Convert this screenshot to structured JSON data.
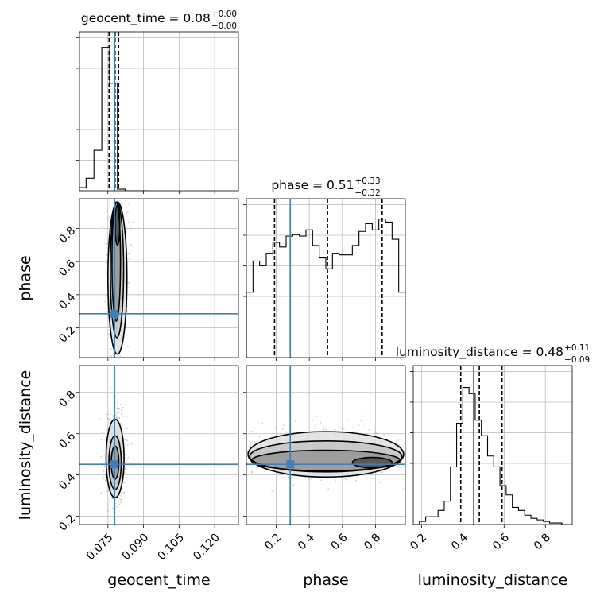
{
  "chart_data": {
    "type": "corner",
    "parameters": [
      "geocent_time",
      "phase",
      "luminosity_distance"
    ],
    "truth_color": "#3f7fb5",
    "truths": {
      "geocent_time": 0.0778,
      "phase": 0.285,
      "luminosity_distance": 0.452
    },
    "titles": {
      "geocent_time": {
        "text": "geocent_time = 0.08",
        "sup": "+0.00",
        "sub": "−0.00"
      },
      "phase": {
        "text": "phase = 0.51",
        "sup": "+0.33",
        "sub": "−0.32"
      },
      "luminosity_distance": {
        "text": "luminosity_distance = 0.48",
        "sup": "+0.11",
        "sub": "−0.09"
      }
    },
    "axis_labels": {
      "x": [
        "geocent_time",
        "phase",
        "luminosity_distance"
      ],
      "y": [
        "phase",
        "luminosity_distance"
      ]
    },
    "ranges": {
      "geocent_time": [
        0.063,
        0.13
      ],
      "phase": [
        0.02,
        0.98
      ],
      "luminosity_distance": [
        0.16,
        0.93
      ]
    },
    "ticks": {
      "geocent_time": {
        "values": [
          0.075,
          0.09,
          0.105,
          0.12
        ],
        "labels": [
          "0.075",
          "0.090",
          "0.105",
          "0.120"
        ]
      },
      "phase": {
        "values": [
          0.2,
          0.4,
          0.6,
          0.8
        ],
        "labels": [
          "0.2",
          "0.4",
          "0.6",
          "0.8"
        ]
      },
      "luminosity_distance": {
        "values": [
          0.2,
          0.4,
          0.6,
          0.8
        ],
        "labels": [
          "0.2",
          "0.4",
          "0.6",
          "0.8"
        ]
      }
    },
    "quantiles": {
      "geocent_time": [
        0.0755,
        0.078,
        0.0795
      ],
      "phase": [
        0.19,
        0.51,
        0.84
      ],
      "luminosity_distance": [
        0.39,
        0.48,
        0.59
      ]
    },
    "histograms": {
      "geocent_time": {
        "edges": [
          0.0625,
          0.0658,
          0.0691,
          0.0724,
          0.0757,
          0.079,
          0.0823,
          0.0856,
          0.0889,
          0.0922
        ],
        "counts": [
          0.02,
          0.08,
          0.26,
          0.92,
          0.69,
          0.01,
          0,
          0,
          0
        ]
      },
      "phase": {
        "edges": [
          0.02,
          0.06,
          0.1,
          0.14,
          0.18,
          0.22,
          0.26,
          0.3,
          0.34,
          0.38,
          0.42,
          0.46,
          0.5,
          0.54,
          0.58,
          0.62,
          0.66,
          0.7,
          0.74,
          0.78,
          0.82,
          0.86,
          0.9,
          0.94,
          0.98
        ],
        "counts": [
          0.42,
          0.62,
          0.59,
          0.67,
          0.74,
          0.71,
          0.78,
          0.79,
          0.78,
          0.82,
          0.72,
          0.64,
          0.57,
          0.67,
          0.66,
          0.66,
          0.72,
          0.81,
          0.86,
          0.82,
          0.89,
          0.87,
          0.76,
          0.42
        ]
      },
      "luminosity_distance": {
        "edges": [
          0.16,
          0.19,
          0.22,
          0.25,
          0.28,
          0.31,
          0.34,
          0.37,
          0.4,
          0.43,
          0.46,
          0.49,
          0.52,
          0.55,
          0.58,
          0.61,
          0.64,
          0.67,
          0.7,
          0.73,
          0.76,
          0.79,
          0.82,
          0.85,
          0.88,
          0.91
        ],
        "counts": [
          0,
          0.02,
          0.05,
          0.05,
          0.09,
          0.15,
          0.37,
          0.65,
          0.88,
          0.84,
          0.67,
          0.57,
          0.44,
          0.37,
          0.25,
          0.19,
          0.11,
          0.09,
          0.06,
          0.04,
          0.03,
          0.02,
          0.01,
          0.01,
          0
        ]
      }
    },
    "contours_2d": [
      {
        "x": "geocent_time",
        "y": "phase",
        "levels": [
          {
            "cx": 0.079,
            "cy": 0.5,
            "rx": 0.004,
            "ry": 0.46
          },
          {
            "cx": 0.0788,
            "cy": 0.55,
            "rx": 0.0028,
            "ry": 0.41
          },
          {
            "cx": 0.0785,
            "cy": 0.6,
            "rx": 0.0018,
            "ry": 0.36
          },
          {
            "cx": 0.079,
            "cy": 0.82,
            "rx": 0.001,
            "ry": 0.12
          }
        ]
      },
      {
        "x": "geocent_time",
        "y": "luminosity_distance",
        "levels": [
          {
            "cx": 0.078,
            "cy": 0.48,
            "rx": 0.0038,
            "ry": 0.19
          },
          {
            "cx": 0.078,
            "cy": 0.46,
            "rx": 0.0026,
            "ry": 0.13
          },
          {
            "cx": 0.078,
            "cy": 0.46,
            "rx": 0.0016,
            "ry": 0.08
          }
        ]
      },
      {
        "x": "phase",
        "y": "luminosity_distance",
        "levels": [
          {
            "cx": 0.5,
            "cy": 0.5,
            "rx": 0.47,
            "ry": 0.11
          },
          {
            "cx": 0.5,
            "cy": 0.49,
            "rx": 0.46,
            "ry": 0.075
          },
          {
            "cx": 0.5,
            "cy": 0.47,
            "rx": 0.45,
            "ry": 0.05
          },
          {
            "cx": 0.78,
            "cy": 0.46,
            "rx": 0.12,
            "ry": 0.025
          }
        ]
      }
    ]
  }
}
